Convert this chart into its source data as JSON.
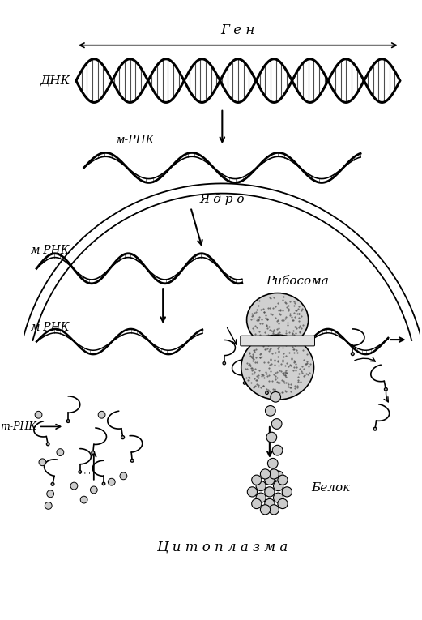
{
  "title": "",
  "background_color": "#ffffff",
  "fig_width": 5.21,
  "fig_height": 7.65,
  "dpi": 100,
  "labels": {
    "gen": "Г е н",
    "dnk": "ДНК",
    "m_rnk_nucleus": "м-РНК",
    "yadro": "Я д р о",
    "m_rnk_cytoplasm": "м-РНК",
    "ribosome": "Рибосома",
    "m_rnk_ribosome": "м-РНК",
    "t_rnk": "т-РНК",
    "belok": "Белок",
    "cytoplasm": "Ц и т о п л а з м а"
  },
  "colors": {
    "black": "#000000",
    "dark_gray": "#333333",
    "light_gray": "#aaaaaa",
    "hatch_fill": "#555555",
    "dot_fill": "#bbbbbb",
    "background": "#ffffff"
  }
}
